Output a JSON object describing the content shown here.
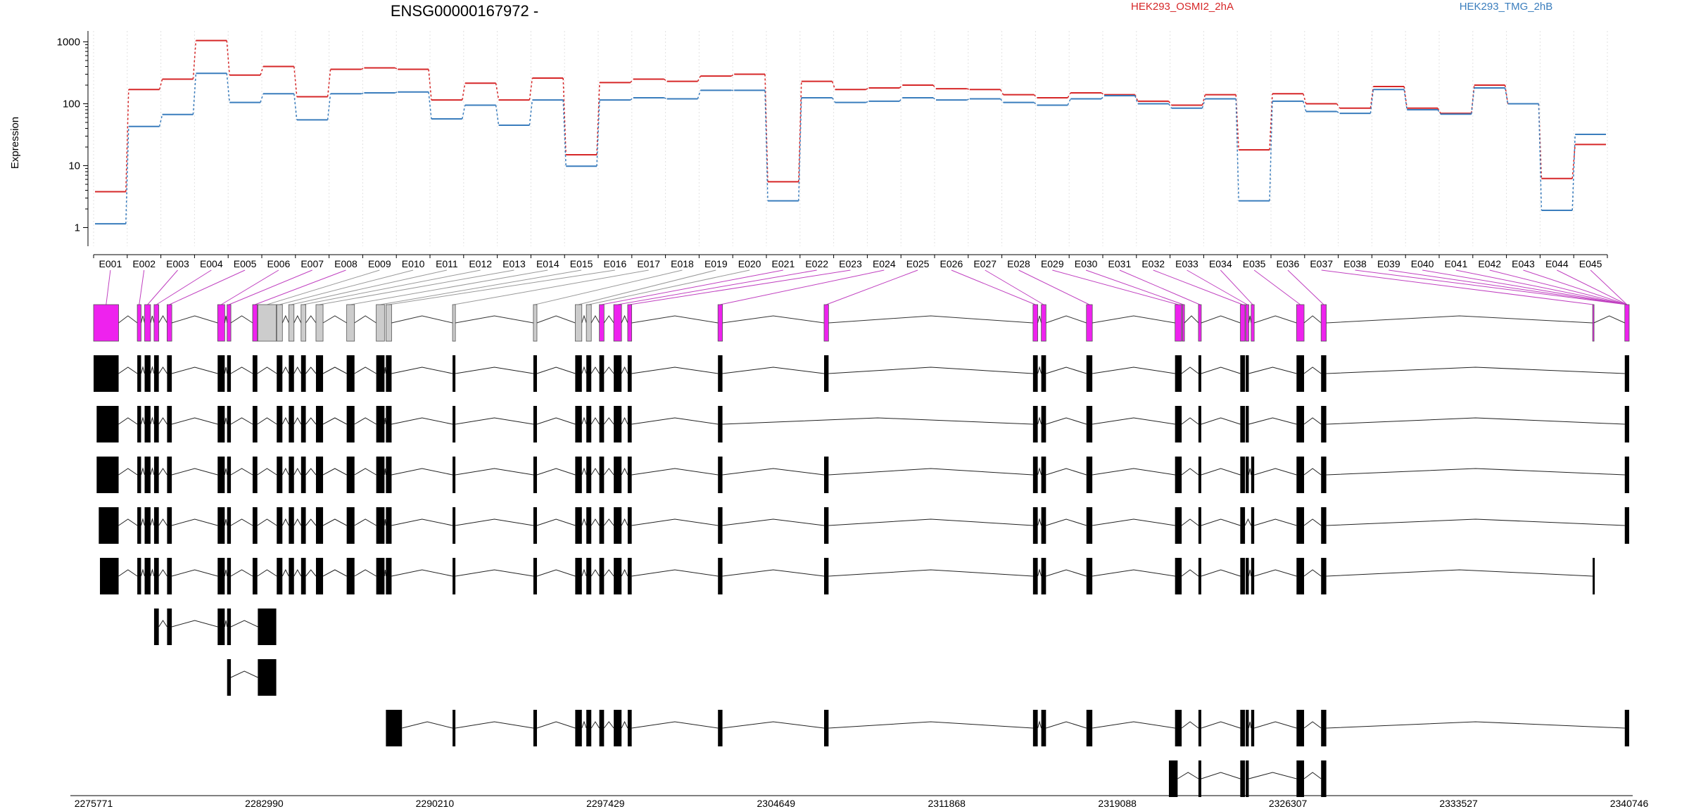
{
  "chart_data": {
    "type": "line",
    "title": "ENSG00000167972 -",
    "ylabel": "Expression",
    "yscale": "log",
    "ylim": [
      0.5,
      1500
    ],
    "yticks": [
      1,
      10,
      100,
      1000
    ],
    "grid": "vertical dotted",
    "legend_position": "top-right",
    "categories": [
      "E001",
      "E002",
      "E003",
      "E004",
      "E005",
      "E006",
      "E007",
      "E008",
      "E009",
      "E010",
      "E011",
      "E012",
      "E013",
      "E014",
      "E015",
      "E016",
      "E017",
      "E018",
      "E019",
      "E020",
      "E021",
      "E022",
      "E023",
      "E024",
      "E025",
      "E026",
      "E027",
      "E028",
      "E029",
      "E030",
      "E031",
      "E032",
      "E033",
      "E034",
      "E035",
      "E036",
      "E037",
      "E038",
      "E039",
      "E040",
      "E041",
      "E042",
      "E043",
      "E044",
      "E045"
    ],
    "series": [
      {
        "name": "HEK293_OSMI2_2hA",
        "color": "#d62728",
        "values": [
          3.8,
          170,
          250,
          1050,
          290,
          400,
          130,
          360,
          380,
          360,
          115,
          215,
          115,
          260,
          15,
          220,
          250,
          230,
          280,
          300,
          5.5,
          230,
          170,
          180,
          200,
          175,
          170,
          140,
          125,
          150,
          140,
          110,
          95,
          140,
          18,
          145,
          100,
          85,
          190,
          85,
          70,
          200,
          100,
          6.2,
          22
        ]
      },
      {
        "name": "HEK293_TMG_2hB",
        "color": "#3a7dbd",
        "values": [
          1.15,
          43,
          67,
          310,
          105,
          145,
          55,
          145,
          150,
          155,
          57,
          95,
          45,
          115,
          9.8,
          115,
          125,
          120,
          165,
          165,
          2.7,
          125,
          105,
          110,
          125,
          115,
          120,
          105,
          95,
          120,
          135,
          100,
          85,
          120,
          2.7,
          110,
          75,
          70,
          170,
          80,
          68,
          180,
          100,
          1.9,
          32
        ]
      }
    ],
    "x_axis_ticks": [
      "2275771",
      "2282990",
      "2290210",
      "2297429",
      "2304649",
      "2311868",
      "2319088",
      "2326307",
      "2333527",
      "2340746"
    ],
    "gene_model": {
      "exons": [
        [
          2275771,
          2276830
        ],
        [
          2277620,
          2277780
        ],
        [
          2277930,
          2278180
        ],
        [
          2278330,
          2278530
        ],
        [
          2278880,
          2279080
        ],
        [
          2281020,
          2281320
        ],
        [
          2281420,
          2281580
        ],
        [
          2282500,
          2282700
        ],
        [
          2282720,
          2283500
        ],
        [
          2283520,
          2283760
        ],
        [
          2284030,
          2284250
        ],
        [
          2284550,
          2284750
        ],
        [
          2285180,
          2285480
        ],
        [
          2286480,
          2286810
        ],
        [
          2287730,
          2288080
        ],
        [
          2288140,
          2288380
        ],
        [
          2290960,
          2291080
        ],
        [
          2294380,
          2294530
        ],
        [
          2296150,
          2296430
        ],
        [
          2296620,
          2296830
        ],
        [
          2297170,
          2297370
        ],
        [
          2297780,
          2298110
        ],
        [
          2298370,
          2298540
        ],
        [
          2302190,
          2302380
        ],
        [
          2306680,
          2306870
        ],
        [
          2315520,
          2315720
        ],
        [
          2315870,
          2316070
        ],
        [
          2317780,
          2318030
        ],
        [
          2321530,
          2321810
        ],
        [
          2321840,
          2321930
        ],
        [
          2322520,
          2322640
        ],
        [
          2324290,
          2324490
        ],
        [
          2324520,
          2324650
        ],
        [
          2324750,
          2324880
        ],
        [
          2326670,
          2326990
        ],
        [
          2327710,
          2327930
        ],
        [
          2339200,
          2339250
        ],
        [
          2340560,
          2340746
        ]
      ],
      "tested_exons": [
        0,
        1,
        2,
        3,
        4,
        5,
        6,
        7,
        20,
        21,
        22,
        23,
        24,
        25,
        26,
        27,
        28,
        29,
        30,
        31,
        32,
        33,
        34,
        35,
        36,
        37,
        38,
        39,
        40,
        41,
        42,
        43,
        44
      ],
      "exon_colors": {
        "tested": "#ee22ee",
        "untested": "#cccccc",
        "transcript": "#000000"
      },
      "transcripts": [
        [
          [
            2275771,
            2276830
          ],
          [
            2277620,
            2277780
          ],
          [
            2277930,
            2278180
          ],
          [
            2278330,
            2278530
          ],
          [
            2278880,
            2279080
          ],
          [
            2281020,
            2281320
          ],
          [
            2281420,
            2281580
          ],
          [
            2282500,
            2282700
          ],
          [
            2283520,
            2283760
          ],
          [
            2284030,
            2284250
          ],
          [
            2284550,
            2284750
          ],
          [
            2285180,
            2285480
          ],
          [
            2286480,
            2286810
          ],
          [
            2287730,
            2288080
          ],
          [
            2288140,
            2288380
          ],
          [
            2290960,
            2291080
          ],
          [
            2294380,
            2294530
          ],
          [
            2296150,
            2296430
          ],
          [
            2296620,
            2296830
          ],
          [
            2297170,
            2297370
          ],
          [
            2297780,
            2298110
          ],
          [
            2298370,
            2298540
          ],
          [
            2302190,
            2302380
          ],
          [
            2306680,
            2306870
          ],
          [
            2315520,
            2315720
          ],
          [
            2315870,
            2316070
          ],
          [
            2317780,
            2318030
          ],
          [
            2321530,
            2321810
          ],
          [
            2322520,
            2322640
          ],
          [
            2324290,
            2324490
          ],
          [
            2324520,
            2324650
          ],
          [
            2326670,
            2326990
          ],
          [
            2327710,
            2327930
          ],
          [
            2340560,
            2340746
          ]
        ],
        [
          [
            2275900,
            2276830
          ],
          [
            2277620,
            2277780
          ],
          [
            2277930,
            2278180
          ],
          [
            2278330,
            2278530
          ],
          [
            2278880,
            2279080
          ],
          [
            2281020,
            2281320
          ],
          [
            2281420,
            2281580
          ],
          [
            2282500,
            2282700
          ],
          [
            2283520,
            2283760
          ],
          [
            2284030,
            2284250
          ],
          [
            2284550,
            2284750
          ],
          [
            2285180,
            2285480
          ],
          [
            2286480,
            2286810
          ],
          [
            2287730,
            2288080
          ],
          [
            2288140,
            2288380
          ],
          [
            2290960,
            2291080
          ],
          [
            2294380,
            2294530
          ],
          [
            2296150,
            2296430
          ],
          [
            2296620,
            2296830
          ],
          [
            2297170,
            2297370
          ],
          [
            2297780,
            2298110
          ],
          [
            2298370,
            2298540
          ],
          [
            2302190,
            2302380
          ],
          [
            2315520,
            2315720
          ],
          [
            2315870,
            2316070
          ],
          [
            2317780,
            2318030
          ],
          [
            2321530,
            2321810
          ],
          [
            2322520,
            2322640
          ],
          [
            2324290,
            2324490
          ],
          [
            2324520,
            2324650
          ],
          [
            2326670,
            2326990
          ],
          [
            2327710,
            2327930
          ],
          [
            2340560,
            2340746
          ]
        ],
        [
          [
            2275900,
            2276830
          ],
          [
            2277620,
            2277780
          ],
          [
            2277930,
            2278180
          ],
          [
            2278330,
            2278530
          ],
          [
            2278880,
            2279080
          ],
          [
            2281020,
            2281320
          ],
          [
            2281420,
            2281580
          ],
          [
            2282500,
            2282700
          ],
          [
            2283520,
            2283760
          ],
          [
            2284030,
            2284250
          ],
          [
            2284550,
            2284750
          ],
          [
            2285180,
            2285480
          ],
          [
            2286480,
            2286810
          ],
          [
            2287730,
            2288080
          ],
          [
            2288140,
            2288380
          ],
          [
            2290960,
            2291080
          ],
          [
            2294380,
            2294530
          ],
          [
            2296150,
            2296430
          ],
          [
            2296620,
            2296830
          ],
          [
            2297170,
            2297370
          ],
          [
            2297780,
            2298110
          ],
          [
            2298370,
            2298540
          ],
          [
            2302190,
            2302380
          ],
          [
            2306680,
            2306870
          ],
          [
            2315520,
            2315720
          ],
          [
            2315870,
            2316070
          ],
          [
            2317780,
            2318030
          ],
          [
            2321530,
            2321810
          ],
          [
            2322520,
            2322640
          ],
          [
            2324290,
            2324490
          ],
          [
            2324520,
            2324650
          ],
          [
            2324750,
            2324880
          ],
          [
            2326670,
            2326990
          ],
          [
            2327710,
            2327930
          ],
          [
            2340560,
            2340746
          ]
        ],
        [
          [
            2275990,
            2276830
          ],
          [
            2277620,
            2277780
          ],
          [
            2277930,
            2278180
          ],
          [
            2278330,
            2278530
          ],
          [
            2278880,
            2279080
          ],
          [
            2281020,
            2281320
          ],
          [
            2281420,
            2281580
          ],
          [
            2282500,
            2282700
          ],
          [
            2283520,
            2283760
          ],
          [
            2284030,
            2284250
          ],
          [
            2284550,
            2284750
          ],
          [
            2285180,
            2285480
          ],
          [
            2286480,
            2286810
          ],
          [
            2287730,
            2288080
          ],
          [
            2288140,
            2288380
          ],
          [
            2290960,
            2291080
          ],
          [
            2294380,
            2294530
          ],
          [
            2296150,
            2296430
          ],
          [
            2296620,
            2296830
          ],
          [
            2297170,
            2297370
          ],
          [
            2297780,
            2298110
          ],
          [
            2298370,
            2298540
          ],
          [
            2302190,
            2302380
          ],
          [
            2306680,
            2306870
          ],
          [
            2315520,
            2315720
          ],
          [
            2315870,
            2316070
          ],
          [
            2317780,
            2318030
          ],
          [
            2321530,
            2321810
          ],
          [
            2322520,
            2322640
          ],
          [
            2324290,
            2324490
          ],
          [
            2324750,
            2324880
          ],
          [
            2326670,
            2326990
          ],
          [
            2327710,
            2327930
          ],
          [
            2340560,
            2340746
          ]
        ],
        [
          [
            2276040,
            2276830
          ],
          [
            2277620,
            2277780
          ],
          [
            2277930,
            2278180
          ],
          [
            2278330,
            2278530
          ],
          [
            2278880,
            2279080
          ],
          [
            2281020,
            2281320
          ],
          [
            2281420,
            2281580
          ],
          [
            2282500,
            2282700
          ],
          [
            2283520,
            2283760
          ],
          [
            2284030,
            2284250
          ],
          [
            2284550,
            2284750
          ],
          [
            2285180,
            2285480
          ],
          [
            2286480,
            2286810
          ],
          [
            2287730,
            2288080
          ],
          [
            2288140,
            2288380
          ],
          [
            2290960,
            2291080
          ],
          [
            2294380,
            2294530
          ],
          [
            2296150,
            2296430
          ],
          [
            2296620,
            2296830
          ],
          [
            2297170,
            2297370
          ],
          [
            2297780,
            2298110
          ],
          [
            2298370,
            2298540
          ],
          [
            2302190,
            2302380
          ],
          [
            2306680,
            2306870
          ],
          [
            2315520,
            2315720
          ],
          [
            2315870,
            2316070
          ],
          [
            2317780,
            2318030
          ],
          [
            2321530,
            2321810
          ],
          [
            2322520,
            2322640
          ],
          [
            2324290,
            2324490
          ],
          [
            2324520,
            2324650
          ],
          [
            2324750,
            2324880
          ],
          [
            2326670,
            2326990
          ],
          [
            2327710,
            2327930
          ],
          [
            2339200,
            2339250
          ]
        ],
        [
          [
            2278330,
            2278530
          ],
          [
            2278880,
            2279080
          ],
          [
            2281020,
            2281320
          ],
          [
            2281420,
            2281580
          ],
          [
            2282720,
            2283500
          ]
        ],
        [
          [
            2281420,
            2281580
          ],
          [
            2282720,
            2283500
          ]
        ],
        [
          [
            2288140,
            2288820
          ],
          [
            2290960,
            2291080
          ],
          [
            2294380,
            2294530
          ],
          [
            2296150,
            2296430
          ],
          [
            2296620,
            2296830
          ],
          [
            2297170,
            2297370
          ],
          [
            2297780,
            2298110
          ],
          [
            2298370,
            2298540
          ],
          [
            2302190,
            2302380
          ],
          [
            2306680,
            2306870
          ],
          [
            2315520,
            2315720
          ],
          [
            2315870,
            2316070
          ],
          [
            2317780,
            2318030
          ],
          [
            2321530,
            2321810
          ],
          [
            2322520,
            2322640
          ],
          [
            2324290,
            2324490
          ],
          [
            2324520,
            2324650
          ],
          [
            2324750,
            2324880
          ],
          [
            2326670,
            2326990
          ],
          [
            2327710,
            2327930
          ],
          [
            2340560,
            2340746
          ]
        ],
        [
          [
            2321270,
            2321640
          ],
          [
            2322520,
            2322640
          ],
          [
            2324290,
            2324490
          ],
          [
            2324520,
            2324650
          ],
          [
            2326670,
            2326990
          ],
          [
            2327710,
            2327930
          ]
        ]
      ]
    }
  }
}
